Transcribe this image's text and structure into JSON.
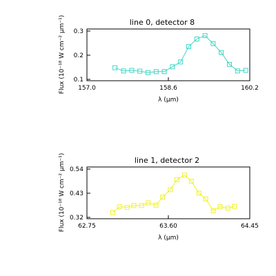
{
  "chart_data": [
    {
      "type": "line",
      "title": "line 0, detector 8",
      "xlabel": "λ (μm)",
      "ylabel": "Flux (10⁻¹⁸ W cm⁻² μm⁻¹)",
      "xlim": [
        157.0,
        160.2
      ],
      "ylim": [
        0.1,
        0.3
      ],
      "xticks": [
        "157.0",
        "158.6",
        "160.2"
      ],
      "yticks": [
        "0.1",
        "0.2",
        "0.3"
      ],
      "color": "#3fd6c4",
      "series": [
        {
          "x": [
            157.55,
            157.72,
            157.88,
            158.04,
            158.2,
            158.36,
            158.52,
            158.68,
            158.84,
            159.0,
            159.16,
            159.32,
            159.48,
            159.64,
            159.8,
            159.96,
            160.12
          ],
          "values": [
            0.148,
            0.135,
            0.137,
            0.134,
            0.128,
            0.132,
            0.132,
            0.152,
            0.172,
            0.236,
            0.267,
            0.281,
            0.248,
            0.211,
            0.162,
            0.135,
            0.137
          ]
        }
      ]
    },
    {
      "type": "line",
      "title": "line 1, detector 2",
      "xlabel": "λ (μm)",
      "ylabel": "Flux (10⁻¹⁸ W cm⁻² μm⁻¹)",
      "xlim": [
        62.75,
        64.45
      ],
      "ylim": [
        0.32,
        0.54
      ],
      "xticks": [
        "62.75",
        "63.60",
        "64.45"
      ],
      "yticks": [
        "0.32",
        "0.43",
        "0.54"
      ],
      "color": "#f2f21e",
      "series": [
        {
          "x": [
            63.02,
            63.09,
            63.17,
            63.24,
            63.32,
            63.39,
            63.47,
            63.54,
            63.62,
            63.69,
            63.77,
            63.84,
            63.92,
            63.99,
            64.07,
            64.14,
            64.22,
            64.29
          ],
          "values": [
            0.342,
            0.368,
            0.366,
            0.374,
            0.374,
            0.386,
            0.376,
            0.412,
            0.446,
            0.492,
            0.512,
            0.484,
            0.43,
            0.404,
            0.35,
            0.368,
            0.362,
            0.37
          ]
        }
      ]
    }
  ]
}
